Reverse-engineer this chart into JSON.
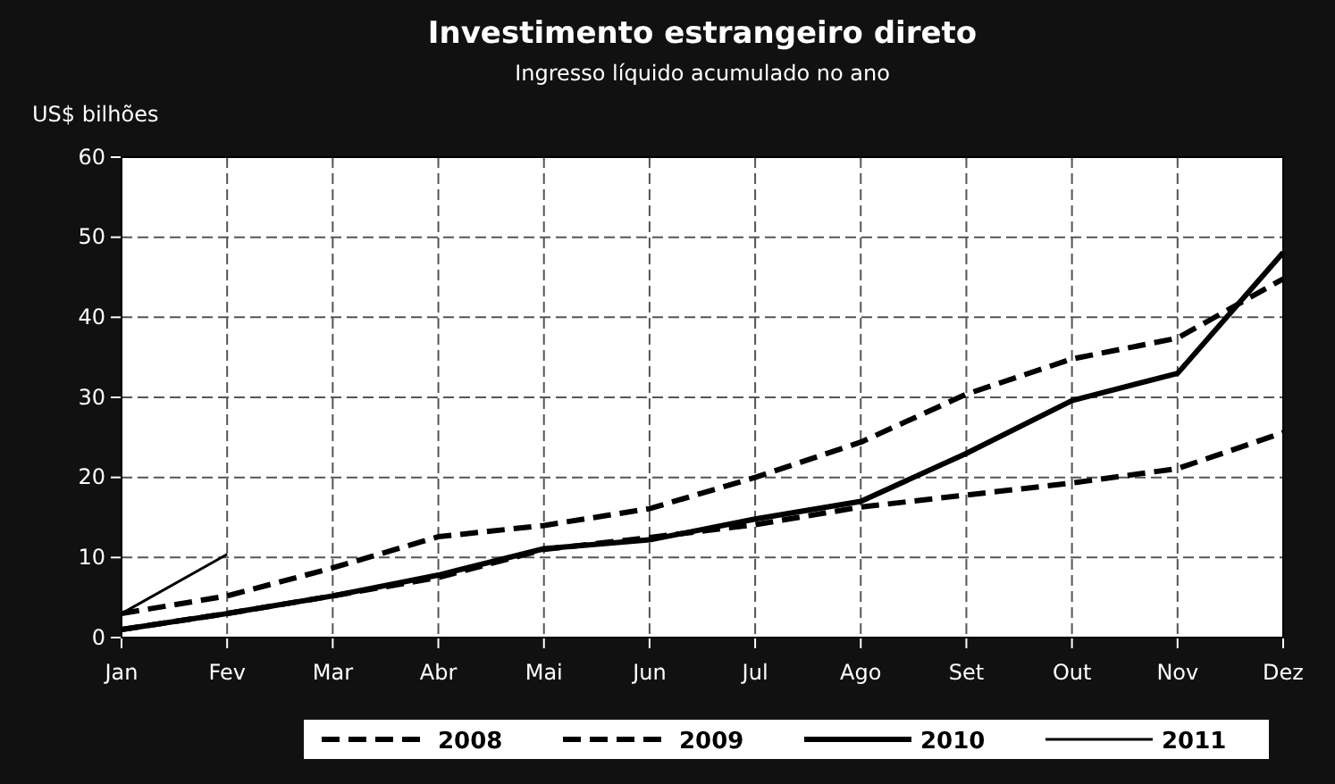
{
  "chart_data": {
    "type": "line",
    "title": "Investimento estrangeiro direto",
    "subtitle": "Ingresso líquido acumulado no ano",
    "ylabel": "US$ bilhões",
    "categories": [
      "Jan",
      "Fev",
      "Mar",
      "Abr",
      "Mai",
      "Jun",
      "Jul",
      "Ago",
      "Set",
      "Out",
      "Nov",
      "Dez"
    ],
    "ylim": [
      0,
      60
    ],
    "yticks": [
      0,
      10,
      20,
      30,
      40,
      50,
      60
    ],
    "grid": true,
    "legend": "bottom",
    "marker": "none",
    "series": [
      {
        "name": "2008",
        "color": "#000000",
        "line_style": "dashed",
        "values": [
          3,
          5.2,
          8.7,
          12.6,
          14,
          16.1,
          20,
          24.4,
          30.4,
          34.8,
          37.4,
          44.8
        ]
      },
      {
        "name": "2009",
        "color": "#000000",
        "line_style": "dashed",
        "values": [
          1,
          3,
          5.2,
          7.5,
          11,
          12.5,
          14.1,
          16.3,
          17.8,
          19.3,
          21.1,
          25.6
        ]
      },
      {
        "name": "2010",
        "color": "#000000",
        "line_style": "solid",
        "values": [
          1,
          3,
          5.2,
          7.8,
          11.1,
          12.2,
          14.8,
          17,
          23,
          29.6,
          33,
          48.1
        ]
      },
      {
        "name": "2011",
        "color": "#000000",
        "line_style": "solid",
        "values": [
          3,
          10.4,
          null,
          null,
          null,
          null,
          null,
          null,
          null,
          null,
          null,
          null
        ]
      }
    ]
  }
}
